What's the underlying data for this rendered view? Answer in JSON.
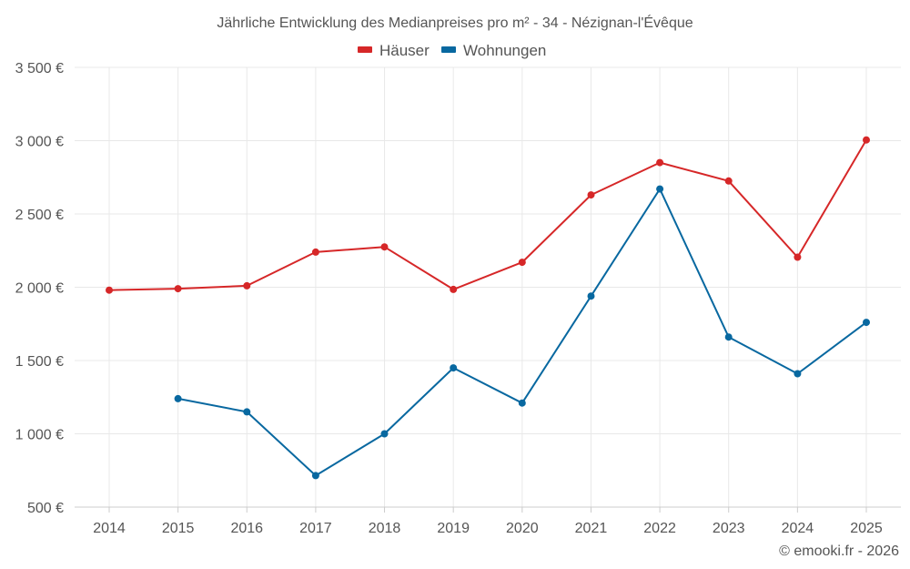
{
  "chart_data": {
    "type": "line",
    "title": "Jährliche Entwicklung des Medianpreises pro m² - 34 - Nézignan-l'Évêque",
    "categories": [
      "2014",
      "2015",
      "2016",
      "2017",
      "2018",
      "2019",
      "2020",
      "2021",
      "2022",
      "2023",
      "2024",
      "2025"
    ],
    "series": [
      {
        "name": "Häuser",
        "color": "#d62728",
        "values": [
          1980,
          1990,
          2010,
          2240,
          2275,
          1985,
          2170,
          2630,
          2850,
          2725,
          2205,
          3005
        ]
      },
      {
        "name": "Wohnungen",
        "color": "#0868a0",
        "values": [
          null,
          1240,
          1150,
          715,
          1000,
          1450,
          1210,
          1940,
          2670,
          1660,
          1410,
          1760
        ]
      }
    ],
    "ylim": [
      500,
      3500
    ],
    "yticks": [
      500,
      1000,
      1500,
      2000,
      2500,
      3000,
      3500
    ],
    "ytick_labels": [
      "500 €",
      "1 000 €",
      "1 500 €",
      "2 000 €",
      "2 500 €",
      "3 000 €",
      "3 500 €"
    ],
    "xlabel": "",
    "ylabel": "",
    "grid": true,
    "legend_position": "top-center"
  },
  "credit": "© emooki.fr - 2026"
}
